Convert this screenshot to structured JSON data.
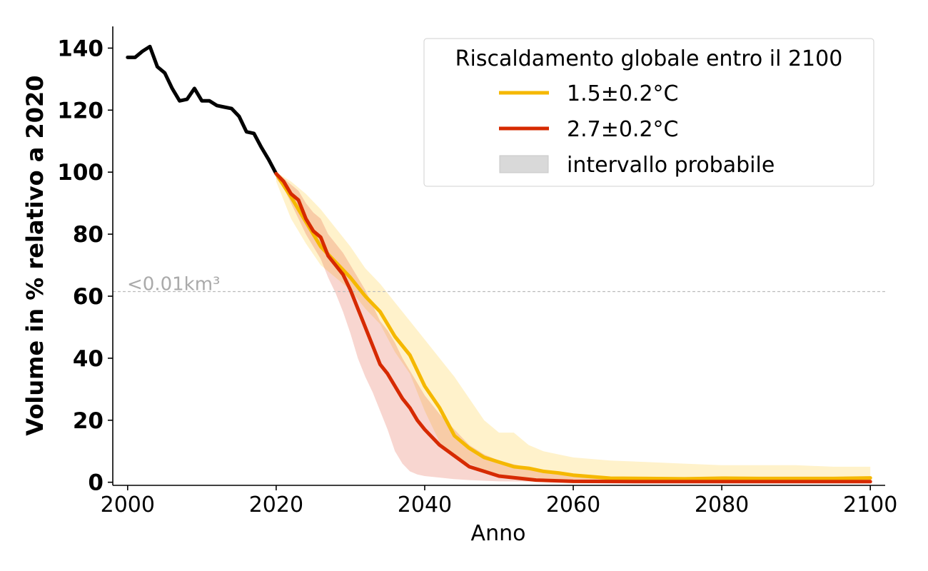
{
  "chart_data": {
    "type": "line",
    "xlabel": "Anno",
    "ylabel": "Volume in % relativo a 2020",
    "xlim": [
      1998,
      2102
    ],
    "ylim": [
      -1,
      147
    ],
    "x_ticks": [
      2000,
      2020,
      2040,
      2060,
      2080,
      2100
    ],
    "y_ticks": [
      0,
      20,
      40,
      60,
      80,
      100,
      120,
      140
    ],
    "grid": false,
    "legend": {
      "placement": "top-right",
      "title": "Riscaldamento globale entro il 2100",
      "entries": [
        {
          "label": "1.5±0.2°C",
          "kind": "line",
          "color": "#f5b800"
        },
        {
          "label": "2.7±0.2°C",
          "kind": "line",
          "color": "#d62a00"
        },
        {
          "label": "intervallo probabile",
          "kind": "band",
          "color": "#d9d9d9"
        }
      ]
    },
    "reference_line": {
      "y": 61.5,
      "label": "<0.01km³",
      "color": "#bbbbbb"
    },
    "series": [
      {
        "color": "#000000",
        "x": [
          2000,
          2001,
          2002,
          2003,
          2004,
          2005,
          2006,
          2007,
          2008,
          2009,
          2010,
          2011,
          2012,
          2013,
          2014,
          2015,
          2016,
          2017,
          2018,
          2019,
          2020
        ],
        "values": [
          137,
          137,
          139,
          140.5,
          134,
          132,
          127,
          123,
          123.5,
          127,
          123,
          123,
          121.5,
          121,
          120.5,
          118,
          113,
          112.5,
          108,
          104,
          99.5
        ]
      },
      {
        "color": "#f5b800",
        "x": [
          2020,
          2022,
          2024,
          2026,
          2028,
          2030,
          2032,
          2034,
          2036,
          2038,
          2040,
          2042,
          2044,
          2046,
          2048,
          2050,
          2052,
          2054,
          2056,
          2058,
          2060,
          2065,
          2070,
          2075,
          2080,
          2085,
          2090,
          2095,
          2100
        ],
        "values": [
          99.5,
          92,
          84,
          76,
          71,
          66,
          60,
          55,
          47,
          41,
          31,
          24,
          15,
          11,
          8,
          6.5,
          5,
          4.5,
          3.5,
          3,
          2.3,
          1.3,
          1.2,
          1.1,
          1.3,
          1.2,
          1.2,
          1.2,
          1.4
        ],
        "band_upper": [
          100,
          97,
          93,
          88,
          82,
          76,
          69,
          64,
          58,
          52,
          46,
          40,
          34,
          27,
          20,
          16,
          16,
          12,
          10,
          9,
          8,
          7,
          6.5,
          6,
          5.5,
          5.5,
          5.5,
          5,
          5
        ],
        "band_lower": [
          97,
          85,
          77,
          70,
          66,
          62,
          56,
          51,
          42,
          35,
          23,
          13,
          8,
          6,
          4,
          2.5,
          2,
          1.5,
          1.2,
          1,
          0.7,
          0.5,
          0.4,
          0.3,
          0.3,
          0.3,
          0.3,
          0.3,
          0.3
        ]
      },
      {
        "color": "#d62a00",
        "x": [
          2020,
          2021,
          2022,
          2023,
          2024,
          2025,
          2026,
          2027,
          2028,
          2029,
          2030,
          2031,
          2032,
          2033,
          2034,
          2035,
          2036,
          2037,
          2038,
          2039,
          2040,
          2042,
          2044,
          2046,
          2048,
          2050,
          2055,
          2060,
          2070,
          2080,
          2090,
          2100
        ],
        "values": [
          99.5,
          97,
          93,
          91,
          85,
          81,
          79,
          73,
          70,
          67,
          62,
          56,
          50,
          44,
          38,
          35,
          31,
          27,
          24,
          20,
          17,
          12,
          8.5,
          5,
          3.5,
          2,
          0.7,
          0.3,
          0.2,
          0.2,
          0.2,
          0.2
        ],
        "band_upper": [
          100,
          98,
          96,
          94,
          90,
          87,
          85,
          80,
          77,
          74,
          70,
          66,
          62,
          57,
          52,
          49,
          45,
          40,
          36,
          32,
          28,
          22,
          17,
          12,
          9,
          7,
          4,
          2,
          1,
          1,
          1,
          1
        ],
        "band_lower": [
          98,
          95,
          90,
          85,
          80,
          76,
          72,
          66,
          61,
          55,
          48,
          40,
          34,
          29,
          23,
          17,
          10,
          6,
          3.5,
          2.5,
          2,
          1.5,
          1,
          0.7,
          0.5,
          0.3,
          0.2,
          0.1,
          0.1,
          0.1,
          0.1,
          0.1
        ]
      }
    ]
  }
}
